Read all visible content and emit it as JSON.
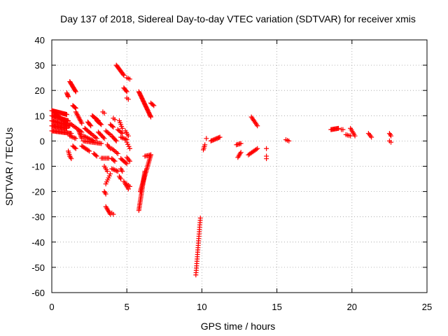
{
  "chart_data": {
    "type": "scatter",
    "title": "Day 137 of 2018, Sidereal Day-to-day VTEC variation (SDTVAR) for receiver xmis",
    "xlabel": "GPS time / hours",
    "ylabel": "SDTVAR / TECUs",
    "xlim": [
      0,
      25
    ],
    "ylim": [
      -60,
      40
    ],
    "xticks": [
      0,
      5,
      10,
      15,
      20,
      25
    ],
    "yticks": [
      -60,
      -50,
      -40,
      -30,
      -20,
      -10,
      0,
      10,
      20,
      30,
      40
    ],
    "grid": true,
    "marker": "+",
    "color": "#ff0000",
    "segments": [
      {
        "start": [
          0.0,
          12.0
        ],
        "end": [
          1.0,
          10.5
        ],
        "n": 22
      },
      {
        "start": [
          0.0,
          10.0
        ],
        "end": [
          1.1,
          8.0
        ],
        "n": 22
      },
      {
        "start": [
          0.0,
          8.0
        ],
        "end": [
          1.2,
          6.0
        ],
        "n": 22
      },
      {
        "start": [
          0.0,
          6.0
        ],
        "end": [
          1.0,
          5.0
        ],
        "n": 20
      },
      {
        "start": [
          0.0,
          4.0
        ],
        "end": [
          1.3,
          3.0
        ],
        "n": 22
      },
      {
        "start": [
          0.2,
          11.0
        ],
        "end": [
          1.0,
          7.0
        ],
        "n": 14
      },
      {
        "start": [
          1.0,
          19.0
        ],
        "end": [
          1.1,
          17.5
        ],
        "n": 5
      },
      {
        "start": [
          1.2,
          23.5
        ],
        "end": [
          1.6,
          19.5
        ],
        "n": 12
      },
      {
        "start": [
          1.4,
          14.0
        ],
        "end": [
          1.6,
          13.0
        ],
        "n": 5
      },
      {
        "start": [
          1.2,
          7.0
        ],
        "end": [
          2.0,
          3.5
        ],
        "n": 10
      },
      {
        "start": [
          1.1,
          -4.0
        ],
        "end": [
          1.2,
          -6.0
        ],
        "n": 4
      },
      {
        "start": [
          1.2,
          -6.0
        ],
        "end": [
          1.3,
          -7.0
        ],
        "n": 3
      },
      {
        "start": [
          1.2,
          2.0
        ],
        "end": [
          1.6,
          1.0
        ],
        "n": 6
      },
      {
        "start": [
          1.4,
          -2.0
        ],
        "end": [
          1.6,
          -3.0
        ],
        "n": 4
      },
      {
        "start": [
          1.6,
          11.5
        ],
        "end": [
          2.0,
          7.0
        ],
        "n": 10
      },
      {
        "start": [
          1.8,
          4.0
        ],
        "end": [
          2.0,
          1.0
        ],
        "n": 7
      },
      {
        "start": [
          2.0,
          -2.0
        ],
        "end": [
          2.5,
          -4.0
        ],
        "n": 8
      },
      {
        "start": [
          2.1,
          0.0
        ],
        "end": [
          3.3,
          -1.0
        ],
        "n": 16
      },
      {
        "start": [
          2.1,
          2.0
        ],
        "end": [
          2.8,
          0.0
        ],
        "n": 10
      },
      {
        "start": [
          2.2,
          5.0
        ],
        "end": [
          2.6,
          3.0
        ],
        "n": 7
      },
      {
        "start": [
          2.4,
          7.5
        ],
        "end": [
          2.6,
          6.0
        ],
        "n": 5
      },
      {
        "start": [
          2.6,
          3.0
        ],
        "end": [
          3.0,
          1.0
        ],
        "n": 6
      },
      {
        "start": [
          2.7,
          10.0
        ],
        "end": [
          3.1,
          8.0
        ],
        "n": 8
      },
      {
        "start": [
          2.8,
          -5.0
        ],
        "end": [
          3.0,
          -6.0
        ],
        "n": 4
      },
      {
        "start": [
          3.0,
          8.0
        ],
        "end": [
          3.3,
          6.5
        ],
        "n": 6
      },
      {
        "start": [
          3.1,
          3.5
        ],
        "end": [
          3.5,
          1.0
        ],
        "n": 7
      },
      {
        "start": [
          3.3,
          -6.8
        ],
        "end": [
          3.8,
          -6.8
        ],
        "n": 7
      },
      {
        "start": [
          3.4,
          11.5
        ],
        "end": [
          3.5,
          11.0
        ],
        "n": 2
      },
      {
        "start": [
          3.6,
          4.0
        ],
        "end": [
          3.9,
          2.5
        ],
        "n": 5
      },
      {
        "start": [
          3.7,
          -1.5
        ],
        "end": [
          3.9,
          -3.0
        ],
        "n": 4
      },
      {
        "start": [
          3.5,
          -10.0
        ],
        "end": [
          3.7,
          -12.0
        ],
        "n": 4
      },
      {
        "start": [
          3.6,
          -17.0
        ],
        "end": [
          3.9,
          -13.0
        ],
        "n": 6
      },
      {
        "start": [
          3.5,
          -20.0
        ],
        "end": [
          3.6,
          -21.0
        ],
        "n": 3
      },
      {
        "start": [
          3.6,
          -26.0
        ],
        "end": [
          3.9,
          -29.0
        ],
        "n": 7
      },
      {
        "start": [
          4.0,
          -28.5
        ],
        "end": [
          4.1,
          -29.0
        ],
        "n": 2
      },
      {
        "start": [
          3.9,
          6.5
        ],
        "end": [
          4.1,
          5.5
        ],
        "n": 4
      },
      {
        "start": [
          4.0,
          2.0
        ],
        "end": [
          4.3,
          0.0
        ],
        "n": 6
      },
      {
        "start": [
          4.0,
          -3.0
        ],
        "end": [
          4.4,
          -5.0
        ],
        "n": 6
      },
      {
        "start": [
          4.0,
          -7.0
        ],
        "end": [
          4.2,
          -8.0
        ],
        "n": 4
      },
      {
        "start": [
          4.0,
          -11.0
        ],
        "end": [
          4.4,
          -12.0
        ],
        "n": 6
      },
      {
        "start": [
          4.1,
          9.0
        ],
        "end": [
          4.2,
          8.5
        ],
        "n": 2
      },
      {
        "start": [
          4.3,
          30.0
        ],
        "end": [
          4.8,
          26.0
        ],
        "n": 12
      },
      {
        "start": [
          4.4,
          4.5
        ],
        "end": [
          4.7,
          3.0
        ],
        "n": 5
      },
      {
        "start": [
          4.5,
          -14.0
        ],
        "end": [
          4.6,
          -15.0
        ],
        "n": 3
      },
      {
        "start": [
          4.5,
          8.0
        ],
        "end": [
          4.7,
          5.0
        ],
        "n": 5
      },
      {
        "start": [
          4.6,
          -7.0
        ],
        "end": [
          5.0,
          -9.0
        ],
        "n": 7
      },
      {
        "start": [
          4.6,
          -11.0
        ],
        "end": [
          4.7,
          -12.0
        ],
        "n": 3
      },
      {
        "start": [
          4.6,
          1.5
        ],
        "end": [
          5.0,
          0.5
        ],
        "n": 6
      },
      {
        "start": [
          4.8,
          21.0
        ],
        "end": [
          5.0,
          19.5
        ],
        "n": 5
      },
      {
        "start": [
          4.8,
          -16.0
        ],
        "end": [
          5.1,
          -19.0
        ],
        "n": 6
      },
      {
        "start": [
          4.9,
          4.0
        ],
        "end": [
          5.1,
          2.0
        ],
        "n": 4
      },
      {
        "start": [
          5.0,
          25.0
        ],
        "end": [
          5.2,
          24.5
        ],
        "n": 3
      },
      {
        "start": [
          5.0,
          17.0
        ],
        "end": [
          5.1,
          16.5
        ],
        "n": 2
      },
      {
        "start": [
          5.0,
          -0.5
        ],
        "end": [
          5.2,
          -3.0
        ],
        "n": 4
      },
      {
        "start": [
          5.0,
          -6.5
        ],
        "end": [
          5.2,
          -8.0
        ],
        "n": 4
      },
      {
        "start": [
          5.0,
          -17.0
        ],
        "end": [
          5.2,
          -18.0
        ],
        "n": 3
      },
      {
        "start": [
          5.8,
          19.5
        ],
        "end": [
          6.6,
          9.5
        ],
        "n": 28
      },
      {
        "start": [
          6.6,
          15.0
        ],
        "end": [
          6.8,
          14.0
        ],
        "n": 4
      },
      {
        "start": [
          5.8,
          -27.5
        ],
        "end": [
          6.2,
          -12.0
        ],
        "n": 28
      },
      {
        "start": [
          5.9,
          -20.0
        ],
        "end": [
          6.6,
          -5.5
        ],
        "n": 28
      },
      {
        "start": [
          6.2,
          -6.0
        ],
        "end": [
          6.6,
          -5.5
        ],
        "n": 6
      },
      {
        "start": [
          9.6,
          -53.0
        ],
        "end": [
          9.9,
          -30.5
        ],
        "n": 26
      },
      {
        "start": [
          10.1,
          -3.5
        ],
        "end": [
          10.2,
          -1.5
        ],
        "n": 4
      },
      {
        "start": [
          10.3,
          1.0
        ],
        "end": [
          10.3,
          1.0
        ],
        "n": 1
      },
      {
        "start": [
          10.6,
          0.0
        ],
        "end": [
          11.2,
          1.5
        ],
        "n": 10
      },
      {
        "start": [
          12.3,
          -1.5
        ],
        "end": [
          12.6,
          -1.0
        ],
        "n": 5
      },
      {
        "start": [
          12.4,
          -6.5
        ],
        "end": [
          12.6,
          -4.5
        ],
        "n": 5
      },
      {
        "start": [
          13.1,
          -5.5
        ],
        "end": [
          13.7,
          -3.0
        ],
        "n": 9
      },
      {
        "start": [
          13.3,
          9.5
        ],
        "end": [
          13.7,
          6.0
        ],
        "n": 8
      },
      {
        "start": [
          14.3,
          -3.0
        ],
        "end": [
          14.3,
          -3.0
        ],
        "n": 1
      },
      {
        "start": [
          14.3,
          -6.0
        ],
        "end": [
          14.3,
          -7.0
        ],
        "n": 2
      },
      {
        "start": [
          15.6,
          0.5
        ],
        "end": [
          15.8,
          0.0
        ],
        "n": 3
      },
      {
        "start": [
          18.6,
          4.5
        ],
        "end": [
          19.1,
          5.0
        ],
        "n": 10
      },
      {
        "start": [
          19.3,
          4.5
        ],
        "end": [
          19.4,
          4.5
        ],
        "n": 2
      },
      {
        "start": [
          19.6,
          2.5
        ],
        "end": [
          19.9,
          2.0
        ],
        "n": 4
      },
      {
        "start": [
          19.9,
          5.0
        ],
        "end": [
          20.2,
          2.0
        ],
        "n": 6
      },
      {
        "start": [
          21.1,
          3.0
        ],
        "end": [
          21.3,
          1.5
        ],
        "n": 4
      },
      {
        "start": [
          22.5,
          3.0
        ],
        "end": [
          22.6,
          2.0
        ],
        "n": 3
      },
      {
        "start": [
          22.5,
          0.0
        ],
        "end": [
          22.6,
          -0.5
        ],
        "n": 2
      }
    ]
  }
}
